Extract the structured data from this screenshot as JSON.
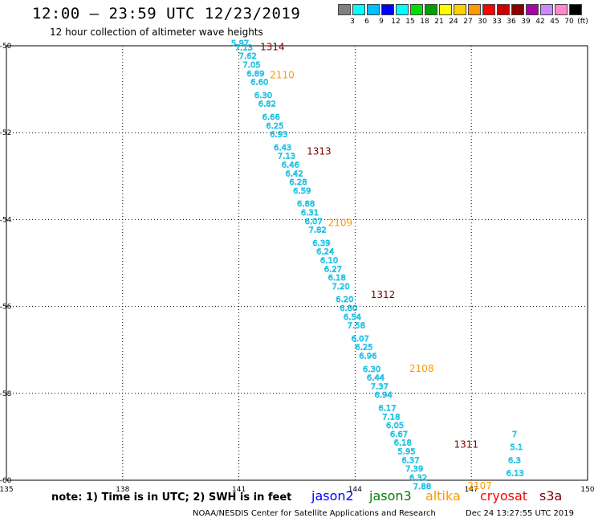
{
  "header": {
    "title": "12:00 – 23:59 UTC 12/23/2019",
    "subtitle": "12 hour collection of altimeter wave heights"
  },
  "colorbar": {
    "unit": "(ft)",
    "colors": [
      "#808080",
      "#00ffff",
      "#00bfff",
      "#0000ff",
      "#00ffff",
      "#00e000",
      "#00a000",
      "#ffff00",
      "#ffd000",
      "#ff9900",
      "#ff0000",
      "#cc0000",
      "#880000",
      "#aa00aa",
      "#cc88ff",
      "#ff88cc",
      "#000000"
    ],
    "labels": [
      "3",
      "6",
      "9",
      "12",
      "15",
      "18",
      "21",
      "24",
      "27",
      "30",
      "33",
      "36",
      "39",
      "42",
      "45",
      "70"
    ]
  },
  "chart_data": {
    "type": "scatter",
    "title": "12 hour collection of altimeter wave heights",
    "xlabel": "",
    "ylabel": "",
    "xlim": [
      135,
      150
    ],
    "ylim": [
      -60,
      -50
    ],
    "xticks": [
      "135",
      "138",
      "141",
      "144",
      "147",
      "150"
    ],
    "yticks": [
      "-50",
      "-52",
      "-54",
      "-56",
      "-58",
      "-60"
    ],
    "grid": true,
    "series": [
      {
        "name": "cryosat",
        "color": "#00b8e0",
        "points": [
          {
            "lon": 140.8,
            "lat": -50.0,
            "swh": "5.97"
          },
          {
            "lon": 140.9,
            "lat": -50.1,
            "swh": "7.13"
          },
          {
            "lon": 141.0,
            "lat": -50.3,
            "swh": "7.62"
          },
          {
            "lon": 141.1,
            "lat": -50.5,
            "swh": "7.05"
          },
          {
            "lon": 141.2,
            "lat": -50.7,
            "swh": "6.89"
          },
          {
            "lon": 141.3,
            "lat": -50.9,
            "swh": "6.60"
          },
          {
            "lon": 141.4,
            "lat": -51.2,
            "swh": "6.30"
          },
          {
            "lon": 141.5,
            "lat": -51.4,
            "swh": "6.82"
          },
          {
            "lon": 141.6,
            "lat": -51.7,
            "swh": "6.66"
          },
          {
            "lon": 141.7,
            "lat": -51.9,
            "swh": "6.25"
          },
          {
            "lon": 141.8,
            "lat": -52.1,
            "swh": "6.93"
          },
          {
            "lon": 141.9,
            "lat": -52.4,
            "swh": "6.43"
          },
          {
            "lon": 142.0,
            "lat": -52.6,
            "swh": "7.13"
          },
          {
            "lon": 142.1,
            "lat": -52.8,
            "swh": "6.46"
          },
          {
            "lon": 142.2,
            "lat": -53.0,
            "swh": "6.42"
          },
          {
            "lon": 142.3,
            "lat": -53.2,
            "swh": "6.28"
          },
          {
            "lon": 142.4,
            "lat": -53.4,
            "swh": "6.59"
          },
          {
            "lon": 142.5,
            "lat": -53.7,
            "swh": "6.88"
          },
          {
            "lon": 142.6,
            "lat": -53.9,
            "swh": "6.31"
          },
          {
            "lon": 142.7,
            "lat": -54.1,
            "swh": "6.07"
          },
          {
            "lon": 142.8,
            "lat": -54.3,
            "swh": "7.82"
          },
          {
            "lon": 142.9,
            "lat": -54.6,
            "swh": "6.39"
          },
          {
            "lon": 143.0,
            "lat": -54.8,
            "swh": "6.24"
          },
          {
            "lon": 143.1,
            "lat": -55.0,
            "swh": "6.10"
          },
          {
            "lon": 143.2,
            "lat": -55.2,
            "swh": "6.27"
          },
          {
            "lon": 143.3,
            "lat": -55.4,
            "swh": "6.18"
          },
          {
            "lon": 143.4,
            "lat": -55.6,
            "swh": "7.20"
          },
          {
            "lon": 143.5,
            "lat": -55.9,
            "swh": "6.20"
          },
          {
            "lon": 143.6,
            "lat": -56.1,
            "swh": "6.80"
          },
          {
            "lon": 143.7,
            "lat": -56.3,
            "swh": "6.54"
          },
          {
            "lon": 143.8,
            "lat": -56.5,
            "swh": "7.58"
          },
          {
            "lon": 143.9,
            "lat": -56.8,
            "swh": "6.07"
          },
          {
            "lon": 144.0,
            "lat": -57.0,
            "swh": "6.25"
          },
          {
            "lon": 144.1,
            "lat": -57.2,
            "swh": "6.96"
          },
          {
            "lon": 144.2,
            "lat": -57.5,
            "swh": "6.30"
          },
          {
            "lon": 144.3,
            "lat": -57.7,
            "swh": "6.44"
          },
          {
            "lon": 144.4,
            "lat": -57.9,
            "swh": "7.37"
          },
          {
            "lon": 144.5,
            "lat": -58.1,
            "swh": "6.94"
          },
          {
            "lon": 144.6,
            "lat": -58.4,
            "swh": "6.17"
          },
          {
            "lon": 144.7,
            "lat": -58.6,
            "swh": "7.18"
          },
          {
            "lon": 144.8,
            "lat": -58.8,
            "swh": "6.05"
          },
          {
            "lon": 144.9,
            "lat": -59.0,
            "swh": "6.67"
          },
          {
            "lon": 145.0,
            "lat": -59.2,
            "swh": "6.18"
          },
          {
            "lon": 145.1,
            "lat": -59.4,
            "swh": "5.95"
          },
          {
            "lon": 145.2,
            "lat": -59.6,
            "swh": "6.37"
          },
          {
            "lon": 145.3,
            "lat": -59.8,
            "swh": "7.39"
          },
          {
            "lon": 145.4,
            "lat": -60.0,
            "swh": "6.32"
          },
          {
            "lon": 145.5,
            "lat": -60.2,
            "swh": "7.88"
          },
          {
            "lon": 147.9,
            "lat": -59.9,
            "swh": "6.13"
          },
          {
            "lon": 147.95,
            "lat": -59.6,
            "swh": "6.3"
          },
          {
            "lon": 148.0,
            "lat": -59.3,
            "swh": "5.1"
          },
          {
            "lon": 148.05,
            "lat": -59.0,
            "swh": "7"
          }
        ]
      }
    ],
    "pass_labels": [
      {
        "text": "1314",
        "lon": 141.55,
        "lat": -50.1,
        "color": "#800000"
      },
      {
        "text": "2110",
        "lon": 141.8,
        "lat": -50.75,
        "color": "#ff9900"
      },
      {
        "text": "1313",
        "lon": 142.75,
        "lat": -52.5,
        "color": "#800000"
      },
      {
        "text": "2109",
        "lon": 143.3,
        "lat": -54.15,
        "color": "#ff9900"
      },
      {
        "text": "1312",
        "lon": 144.4,
        "lat": -55.8,
        "color": "#800000"
      },
      {
        "text": "2108",
        "lon": 145.4,
        "lat": -57.5,
        "color": "#ff9900"
      },
      {
        "text": "1311",
        "lon": 146.55,
        "lat": -59.25,
        "color": "#800000"
      },
      {
        "text": "2107",
        "lon": 146.9,
        "lat": -60.2,
        "color": "#ff9900"
      }
    ]
  },
  "legend": {
    "note": "note: 1) Time is in UTC; 2) SWH is in feet",
    "satellites": [
      {
        "name": "jason2",
        "color": "#0000ff"
      },
      {
        "name": "jason3",
        "color": "#008000"
      },
      {
        "name": "altika",
        "color": "#ff9900"
      },
      {
        "name": "cryosat",
        "color": "#ff0000"
      },
      {
        "name": "s3a",
        "color": "#800000"
      }
    ]
  },
  "footer": {
    "credit": "NOAA/NESDIS Center for Satellite Applications and Research",
    "timestamp": "Dec 24 13:27:55 UTC 2019"
  }
}
